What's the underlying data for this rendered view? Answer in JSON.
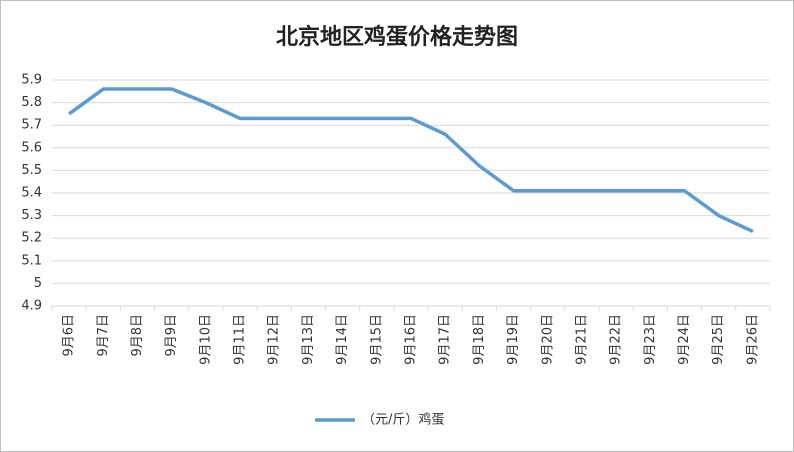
{
  "chart_data": {
    "type": "line",
    "title": "北京地区鸡蛋价格走势图",
    "categories": [
      "9月6日",
      "9月7日",
      "9月8日",
      "9月9日",
      "9月10日",
      "9月11日",
      "9月12日",
      "9月13日",
      "9月14日",
      "9月15日",
      "9月16日",
      "9月17日",
      "9月18日",
      "9月19日",
      "9月20日",
      "9月21日",
      "9月22日",
      "9月23日",
      "9月24日",
      "9月25日",
      "9月26日"
    ],
    "series": [
      {
        "name": "（元/斤）鸡蛋",
        "color": "#5b9bd5",
        "values": [
          5.75,
          5.86,
          5.86,
          5.86,
          5.8,
          5.73,
          5.73,
          5.73,
          5.73,
          5.73,
          5.73,
          5.66,
          5.52,
          5.41,
          5.41,
          5.41,
          5.41,
          5.41,
          5.41,
          5.3,
          5.23
        ]
      }
    ],
    "ylim": [
      4.9,
      5.9
    ],
    "yticks": [
      4.9,
      5,
      5.1,
      5.2,
      5.3,
      5.4,
      5.5,
      5.6,
      5.7,
      5.8,
      5.9
    ],
    "grid": true,
    "legend": "bottom"
  }
}
